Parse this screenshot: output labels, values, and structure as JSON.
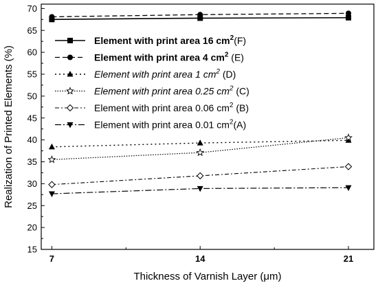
{
  "chart_data": {
    "type": "line",
    "title": "",
    "xlabel": "Thickness of Varnish Layer (μm)",
    "ylabel": "Realization of Printed Elements (%)",
    "x": [
      7,
      14,
      21
    ],
    "xticks": [
      "7",
      "14",
      "21"
    ],
    "ylim": [
      15,
      71
    ],
    "yticks": [
      15,
      20,
      25,
      30,
      35,
      40,
      45,
      50,
      55,
      60,
      65,
      70
    ],
    "grid": false,
    "legend_position": "top-left",
    "series": [
      {
        "name": "Element with print area 16 cm²(F)",
        "label_main": "Element with print area 16 cm",
        "label_sup": "2",
        "label_tail": "(F)",
        "values": [
          67.5,
          67.8,
          67.9
        ],
        "marker": "square",
        "line": "solid",
        "weight": "bold",
        "style": "normal"
      },
      {
        "name": "Element with print area 4 cm² (E)",
        "label_main": "Element with print area 4 cm",
        "label_sup": "2",
        "label_tail": " (E)",
        "values": [
          68.1,
          68.6,
          68.9
        ],
        "marker": "circle",
        "line": "dashed",
        "weight": "bold",
        "style": "normal"
      },
      {
        "name": "Element with print area 1 cm² (D)",
        "label_main": "Element with print area 1 cm",
        "label_sup": "2",
        "label_tail": " (D)",
        "values": [
          38.4,
          39.3,
          39.9
        ],
        "marker": "triangle-up",
        "line": "dotted",
        "weight": "normal",
        "style": "italic"
      },
      {
        "name": "Element with print area 0.25 cm² (C)",
        "label_main": "Element with print area 0.25 cm",
        "label_sup": "2",
        "label_tail": " (C)",
        "values": [
          35.5,
          37.1,
          40.5
        ],
        "marker": "star",
        "line": "dotted-fine",
        "weight": "normal",
        "style": "italic"
      },
      {
        "name": "Element with print area 0.06 cm² (B)",
        "label_main": "Element with print area 0.06 cm",
        "label_sup": "2",
        "label_tail": " (B)",
        "values": [
          29.8,
          31.8,
          33.9
        ],
        "marker": "diamond",
        "line": "dash-dot",
        "weight": "normal",
        "style": "normal"
      },
      {
        "name": "Element with print area 0.01 cm² (A)",
        "label_main": "Element with print area 0.01 cm",
        "label_sup": "2",
        "label_tail": "(A)",
        "values": [
          27.7,
          28.9,
          29.1
        ],
        "marker": "triangle-down",
        "line": "dash-dot-long",
        "weight": "normal",
        "style": "normal"
      }
    ]
  }
}
